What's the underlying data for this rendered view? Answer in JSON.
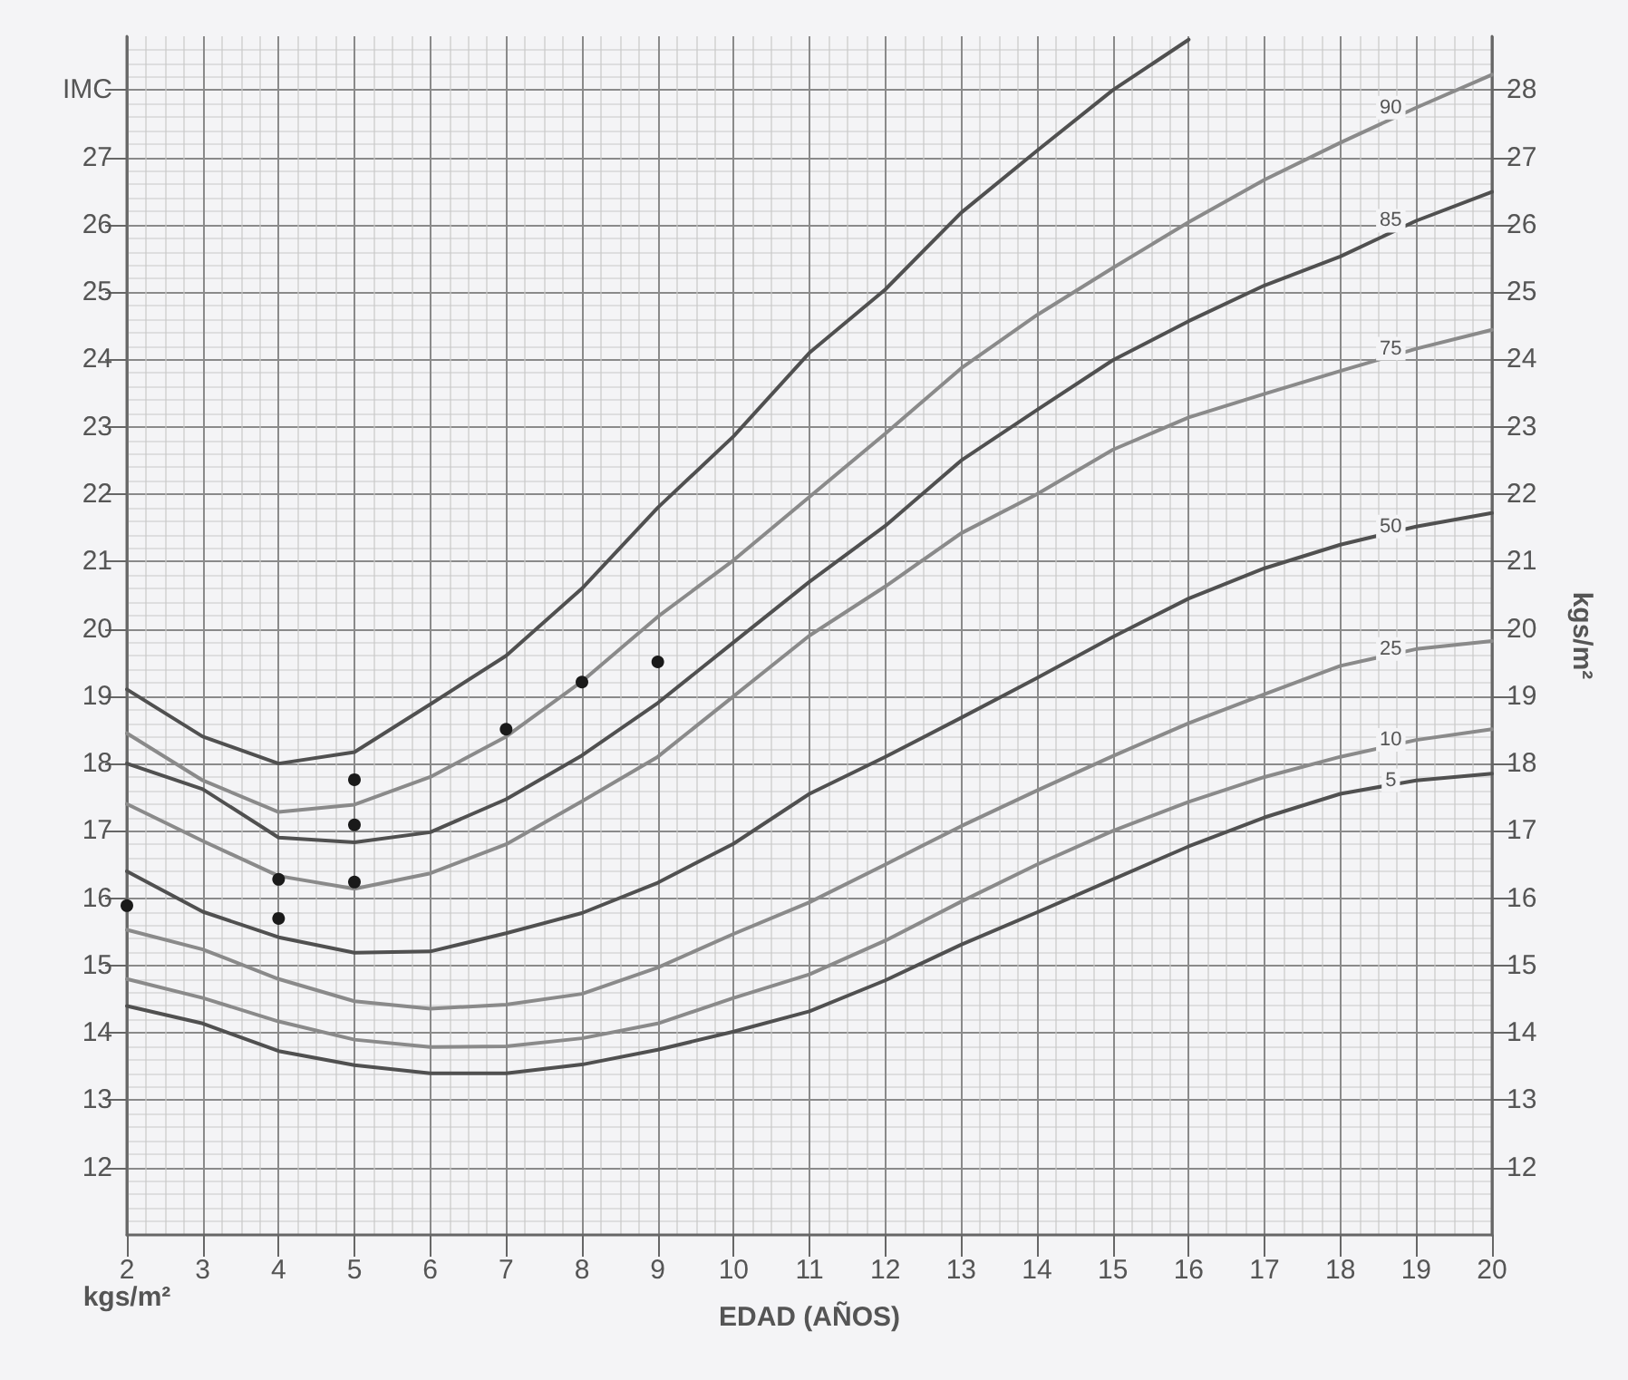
{
  "chart_data": {
    "type": "line",
    "xlabel": "EDAD (AÑOS)",
    "ylabel": "kgs/m²",
    "y2label": "kgs/m²",
    "x": [
      2,
      3,
      4,
      5,
      6,
      7,
      8,
      9,
      10,
      11,
      12,
      13,
      14,
      15,
      16,
      17,
      18,
      19,
      20
    ],
    "series": [
      {
        "color": "#505050",
        "values": [
          19.1,
          18.4,
          18.0,
          18.17,
          18.88,
          19.6,
          20.6,
          21.8,
          22.86,
          24.1,
          25.04,
          26.18,
          27.1,
          28.0,
          28.75,
          null,
          null,
          null,
          null
        ]
      },
      {
        "name": "90",
        "color": "#8a8a8a",
        "values": [
          18.45,
          17.75,
          17.28,
          17.39,
          17.8,
          18.4,
          19.22,
          20.18,
          21.02,
          21.96,
          22.9,
          23.87,
          24.66,
          25.36,
          26.04,
          26.67,
          27.22,
          27.74,
          28.23
        ]
      },
      {
        "name": "85",
        "color": "#505050",
        "values": [
          18.0,
          17.62,
          16.9,
          16.83,
          16.98,
          17.47,
          18.12,
          18.9,
          19.8,
          20.7,
          21.53,
          22.5,
          23.25,
          23.99,
          24.57,
          25.1,
          25.53,
          26.06,
          26.49
        ]
      },
      {
        "name": "75",
        "color": "#8a8a8a",
        "values": [
          17.4,
          16.85,
          16.33,
          16.14,
          16.37,
          16.8,
          17.44,
          18.1,
          19.0,
          19.9,
          20.63,
          21.42,
          22.0,
          22.66,
          23.14,
          23.49,
          23.83,
          24.16,
          24.44
        ]
      },
      {
        "name": "50",
        "color": "#505050",
        "values": [
          16.4,
          15.8,
          15.42,
          15.19,
          15.21,
          15.48,
          15.78,
          16.23,
          16.81,
          17.55,
          18.1,
          18.68,
          19.27,
          19.88,
          20.45,
          20.9,
          21.25,
          21.52,
          21.72
        ]
      },
      {
        "name": "25",
        "color": "#8a8a8a",
        "values": [
          15.53,
          15.24,
          14.8,
          14.47,
          14.36,
          14.42,
          14.58,
          14.97,
          15.47,
          15.94,
          16.5,
          17.07,
          17.6,
          18.11,
          18.6,
          19.03,
          19.45,
          19.7,
          19.82
        ]
      },
      {
        "name": "10",
        "color": "#8a8a8a",
        "values": [
          14.8,
          14.52,
          14.17,
          13.9,
          13.79,
          13.8,
          13.92,
          14.14,
          14.52,
          14.87,
          15.37,
          15.95,
          16.5,
          17.0,
          17.43,
          17.8,
          18.1,
          18.35,
          18.51
        ]
      },
      {
        "name": "5",
        "color": "#505050",
        "values": [
          14.4,
          14.14,
          13.73,
          13.52,
          13.4,
          13.4,
          13.53,
          13.75,
          14.02,
          14.32,
          14.78,
          15.31,
          15.79,
          16.28,
          16.77,
          17.2,
          17.55,
          17.75,
          17.85
        ]
      },
      {
        "type": "scatter",
        "marker": "circle",
        "color": "#1a1a1a",
        "x": [
          2,
          4,
          4,
          5,
          5,
          5,
          7,
          8,
          9
        ],
        "values": [
          15.89,
          16.28,
          15.7,
          17.76,
          17.09,
          16.24,
          18.51,
          19.21,
          19.51
        ]
      }
    ],
    "xlim": [
      2,
      20
    ],
    "xticks": [
      2,
      3,
      4,
      5,
      6,
      7,
      8,
      9,
      10,
      11,
      12,
      13,
      14,
      15,
      16,
      17,
      18,
      19,
      20
    ],
    "ylim": [
      11,
      28.8
    ],
    "yticks": [
      12,
      13,
      14,
      15,
      16,
      17,
      18,
      19,
      20,
      21,
      22,
      23,
      24,
      25,
      26,
      27,
      {
        "value": 28,
        "label": "IMC"
      }
    ],
    "y2lim": [
      11,
      28.8
    ],
    "y2ticks": [
      12,
      13,
      14,
      15,
      16,
      17,
      18,
      19,
      20,
      21,
      22,
      23,
      24,
      25,
      26,
      27,
      28
    ],
    "grid": true,
    "legend": false
  }
}
